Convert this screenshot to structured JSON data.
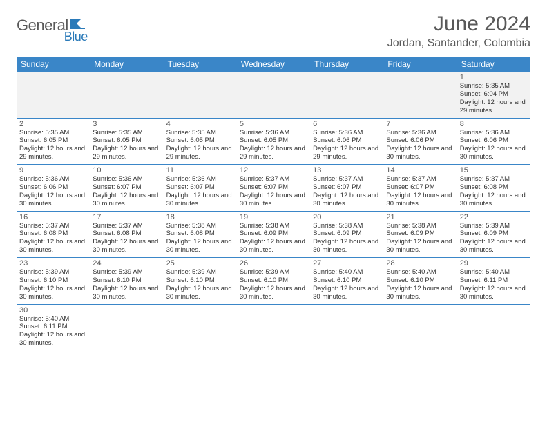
{
  "brand": {
    "part1": "General",
    "part2": "Blue"
  },
  "title": "June 2024",
  "location": "Jordan, Santander, Colombia",
  "colors": {
    "header_bg": "#3a86c8",
    "header_text": "#ffffff",
    "blank_row_bg": "#f2f2f2",
    "text": "#333333",
    "muted": "#595959",
    "border": "#3a86c8"
  },
  "dayHeaders": [
    "Sunday",
    "Monday",
    "Tuesday",
    "Wednesday",
    "Thursday",
    "Friday",
    "Saturday"
  ],
  "weeks": [
    [
      null,
      null,
      null,
      null,
      null,
      null,
      {
        "n": "1",
        "sr": "5:35 AM",
        "ss": "6:04 PM",
        "dl": "12 hours and 29 minutes."
      }
    ],
    [
      {
        "n": "2",
        "sr": "5:35 AM",
        "ss": "6:05 PM",
        "dl": "12 hours and 29 minutes."
      },
      {
        "n": "3",
        "sr": "5:35 AM",
        "ss": "6:05 PM",
        "dl": "12 hours and 29 minutes."
      },
      {
        "n": "4",
        "sr": "5:35 AM",
        "ss": "6:05 PM",
        "dl": "12 hours and 29 minutes."
      },
      {
        "n": "5",
        "sr": "5:36 AM",
        "ss": "6:05 PM",
        "dl": "12 hours and 29 minutes."
      },
      {
        "n": "6",
        "sr": "5:36 AM",
        "ss": "6:06 PM",
        "dl": "12 hours and 29 minutes."
      },
      {
        "n": "7",
        "sr": "5:36 AM",
        "ss": "6:06 PM",
        "dl": "12 hours and 30 minutes."
      },
      {
        "n": "8",
        "sr": "5:36 AM",
        "ss": "6:06 PM",
        "dl": "12 hours and 30 minutes."
      }
    ],
    [
      {
        "n": "9",
        "sr": "5:36 AM",
        "ss": "6:06 PM",
        "dl": "12 hours and 30 minutes."
      },
      {
        "n": "10",
        "sr": "5:36 AM",
        "ss": "6:07 PM",
        "dl": "12 hours and 30 minutes."
      },
      {
        "n": "11",
        "sr": "5:36 AM",
        "ss": "6:07 PM",
        "dl": "12 hours and 30 minutes."
      },
      {
        "n": "12",
        "sr": "5:37 AM",
        "ss": "6:07 PM",
        "dl": "12 hours and 30 minutes."
      },
      {
        "n": "13",
        "sr": "5:37 AM",
        "ss": "6:07 PM",
        "dl": "12 hours and 30 minutes."
      },
      {
        "n": "14",
        "sr": "5:37 AM",
        "ss": "6:07 PM",
        "dl": "12 hours and 30 minutes."
      },
      {
        "n": "15",
        "sr": "5:37 AM",
        "ss": "6:08 PM",
        "dl": "12 hours and 30 minutes."
      }
    ],
    [
      {
        "n": "16",
        "sr": "5:37 AM",
        "ss": "6:08 PM",
        "dl": "12 hours and 30 minutes."
      },
      {
        "n": "17",
        "sr": "5:37 AM",
        "ss": "6:08 PM",
        "dl": "12 hours and 30 minutes."
      },
      {
        "n": "18",
        "sr": "5:38 AM",
        "ss": "6:08 PM",
        "dl": "12 hours and 30 minutes."
      },
      {
        "n": "19",
        "sr": "5:38 AM",
        "ss": "6:09 PM",
        "dl": "12 hours and 30 minutes."
      },
      {
        "n": "20",
        "sr": "5:38 AM",
        "ss": "6:09 PM",
        "dl": "12 hours and 30 minutes."
      },
      {
        "n": "21",
        "sr": "5:38 AM",
        "ss": "6:09 PM",
        "dl": "12 hours and 30 minutes."
      },
      {
        "n": "22",
        "sr": "5:39 AM",
        "ss": "6:09 PM",
        "dl": "12 hours and 30 minutes."
      }
    ],
    [
      {
        "n": "23",
        "sr": "5:39 AM",
        "ss": "6:10 PM",
        "dl": "12 hours and 30 minutes."
      },
      {
        "n": "24",
        "sr": "5:39 AM",
        "ss": "6:10 PM",
        "dl": "12 hours and 30 minutes."
      },
      {
        "n": "25",
        "sr": "5:39 AM",
        "ss": "6:10 PM",
        "dl": "12 hours and 30 minutes."
      },
      {
        "n": "26",
        "sr": "5:39 AM",
        "ss": "6:10 PM",
        "dl": "12 hours and 30 minutes."
      },
      {
        "n": "27",
        "sr": "5:40 AM",
        "ss": "6:10 PM",
        "dl": "12 hours and 30 minutes."
      },
      {
        "n": "28",
        "sr": "5:40 AM",
        "ss": "6:10 PM",
        "dl": "12 hours and 30 minutes."
      },
      {
        "n": "29",
        "sr": "5:40 AM",
        "ss": "6:11 PM",
        "dl": "12 hours and 30 minutes."
      }
    ],
    [
      {
        "n": "30",
        "sr": "5:40 AM",
        "ss": "6:11 PM",
        "dl": "12 hours and 30 minutes."
      },
      null,
      null,
      null,
      null,
      null,
      null
    ]
  ],
  "labels": {
    "sunrise": "Sunrise:",
    "sunset": "Sunset:",
    "daylight": "Daylight:"
  }
}
